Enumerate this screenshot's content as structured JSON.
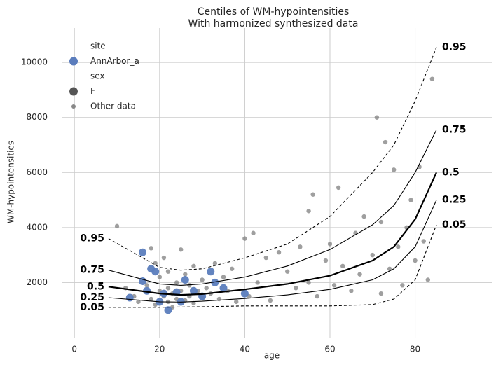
{
  "chart_data": {
    "type": "scatter",
    "title": "Centiles of WM-hypointensities",
    "subtitle": "With harmonized synthesized data",
    "xlabel": "age",
    "ylabel": "WM-hypointensities",
    "xlim": [
      -3,
      98
    ],
    "ylim": [
      0,
      11250
    ],
    "xticks": [
      0,
      20,
      40,
      60,
      80
    ],
    "yticks": [
      2000,
      4000,
      6000,
      8000,
      10000
    ],
    "grid": true,
    "points": [
      {
        "name": "Other data",
        "color": "#7f7f7f",
        "x": [
          10,
          12,
          14,
          15,
          17,
          18,
          18,
          19,
          19,
          20,
          20,
          21,
          21,
          22,
          22,
          22,
          23,
          23,
          24,
          24,
          25,
          25,
          26,
          26,
          27,
          27,
          28,
          28,
          29,
          30,
          30,
          31,
          32,
          33,
          34,
          35,
          36,
          37,
          38,
          40,
          41,
          42,
          43,
          45,
          46,
          48,
          50,
          52,
          53,
          55,
          55,
          56,
          57,
          59,
          60,
          61,
          62,
          63,
          65,
          66,
          67,
          68,
          70,
          71,
          72,
          72,
          73,
          74,
          75,
          76,
          77,
          78,
          79,
          80,
          81,
          82,
          83,
          84
        ],
        "y": [
          4050,
          1800,
          1500,
          1300,
          1900,
          3250,
          1400,
          2700,
          1200,
          1700,
          2200,
          1500,
          2900,
          1300,
          1800,
          2400,
          1600,
          1100,
          2000,
          1400,
          1700,
          3200,
          1350,
          2300,
          1500,
          1900,
          1250,
          2600,
          1700,
          1450,
          2100,
          1800,
          1600,
          2700,
          1400,
          2200,
          1700,
          2500,
          1300,
          3600,
          1500,
          3800,
          2000,
          2900,
          1350,
          3100,
          2400,
          1800,
          3300,
          4600,
          2000,
          5200,
          1500,
          2800,
          3400,
          1900,
          5450,
          2600,
          1700,
          3800,
          2300,
          4400,
          3000,
          8000,
          1600,
          4200,
          7100,
          2500,
          6100,
          3300,
          1900,
          4000,
          5000,
          2800,
          6200,
          3500,
          2100,
          9400
        ]
      },
      {
        "name": "AnnArbor_a",
        "color": "#5b7dbd",
        "x": [
          13,
          16,
          16,
          17,
          18,
          19,
          20,
          21,
          22,
          24,
          25,
          26,
          28,
          30,
          32,
          33,
          35,
          40
        ],
        "y": [
          1450,
          3100,
          2050,
          1700,
          2500,
          2400,
          1300,
          1600,
          1000,
          1650,
          1300,
          2100,
          1700,
          1500,
          2400,
          2000,
          1800,
          1600
        ]
      }
    ],
    "centiles": [
      {
        "name": "0.95",
        "dashed": true,
        "bold": false,
        "x": [
          8,
          20,
          25,
          30,
          40,
          50,
          60,
          70,
          75,
          80,
          85
        ],
        "values": [
          3600,
          2550,
          2450,
          2500,
          2900,
          3400,
          4400,
          6000,
          7000,
          8600,
          10550
        ]
      },
      {
        "name": "0.75",
        "dashed": false,
        "bold": false,
        "x": [
          8,
          20,
          25,
          30,
          40,
          50,
          60,
          70,
          75,
          80,
          85
        ],
        "values": [
          2450,
          1950,
          1900,
          1950,
          2200,
          2600,
          3200,
          4100,
          4800,
          6000,
          7550
        ]
      },
      {
        "name": "0.5",
        "dashed": false,
        "bold": true,
        "x": [
          8,
          20,
          25,
          30,
          40,
          50,
          60,
          70,
          75,
          80,
          85
        ],
        "values": [
          1850,
          1600,
          1550,
          1580,
          1750,
          1950,
          2250,
          2800,
          3300,
          4300,
          6000
        ]
      },
      {
        "name": "0.25",
        "dashed": false,
        "bold": false,
        "x": [
          8,
          20,
          25,
          30,
          40,
          50,
          60,
          70,
          75,
          80,
          85
        ],
        "values": [
          1450,
          1300,
          1290,
          1320,
          1420,
          1550,
          1750,
          2100,
          2500,
          3300,
          5000
        ]
      },
      {
        "name": "0.05",
        "dashed": true,
        "bold": false,
        "x": [
          8,
          20,
          25,
          30,
          40,
          50,
          60,
          70,
          75,
          80,
          85
        ],
        "values": [
          1100,
          1100,
          1110,
          1120,
          1150,
          1150,
          1150,
          1200,
          1400,
          2100,
          4100
        ]
      }
    ],
    "legend": [
      {
        "label": "site"
      },
      {
        "label": "AnnArbor_a",
        "color": "#5b7dbd",
        "size": 6
      },
      {
        "label": "sex"
      },
      {
        "label": "F",
        "color": "#555555",
        "size": 6
      },
      {
        "label": "Other data",
        "color": "#888888",
        "size": 3
      }
    ]
  }
}
